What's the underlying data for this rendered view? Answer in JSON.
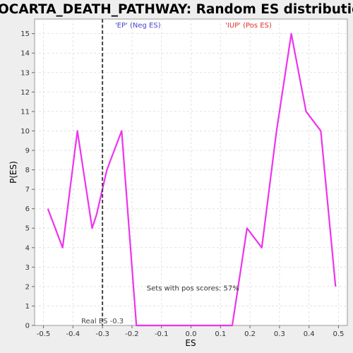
{
  "chart_data": {
    "type": "line",
    "title": "BIOCARTA_DEATH_PATHWAY: Random ES distribution",
    "xlabel": "ES",
    "ylabel": "P(ES)",
    "xlim": [
      -0.53,
      0.53
    ],
    "ylim": [
      0,
      15.75
    ],
    "x_ticks": [
      "-0.5",
      "-0.4",
      "-0.3",
      "-0.2",
      "-0.1",
      "0.0",
      "0.1",
      "0.2",
      "0.3",
      "0.4",
      "0.5"
    ],
    "y_ticks": [
      "0",
      "1",
      "2",
      "3",
      "4",
      "5",
      "6",
      "7",
      "8",
      "9",
      "10",
      "11",
      "12",
      "13",
      "14",
      "15"
    ],
    "grid": true,
    "series": [
      {
        "color": "#ee33ee",
        "x": [
          -0.485,
          -0.435,
          -0.385,
          -0.335,
          -0.32,
          -0.285,
          -0.235,
          -0.185,
          -0.135,
          -0.085,
          -0.035,
          0.015,
          0.065,
          0.115,
          0.14,
          0.19,
          0.24,
          0.29,
          0.34,
          0.39,
          0.44,
          0.49
        ],
        "y": [
          6,
          4,
          10,
          5,
          5.7,
          8,
          10,
          0,
          0,
          0,
          0,
          0,
          0,
          0,
          0,
          5,
          4,
          10,
          15,
          11,
          10,
          2
        ]
      }
    ],
    "real_es": {
      "x": -0.3,
      "label": "Real ES -0.3",
      "color": "#444444"
    },
    "annotations": {
      "neg": {
        "text": "'EP' (Neg ES)",
        "color": "#4444cc"
      },
      "pos": {
        "text": "'IUP' (Pos ES)",
        "color": "#dd3333"
      },
      "pos_scores": {
        "text": "Sets with pos scores: 57%",
        "color": "#333333"
      }
    }
  }
}
